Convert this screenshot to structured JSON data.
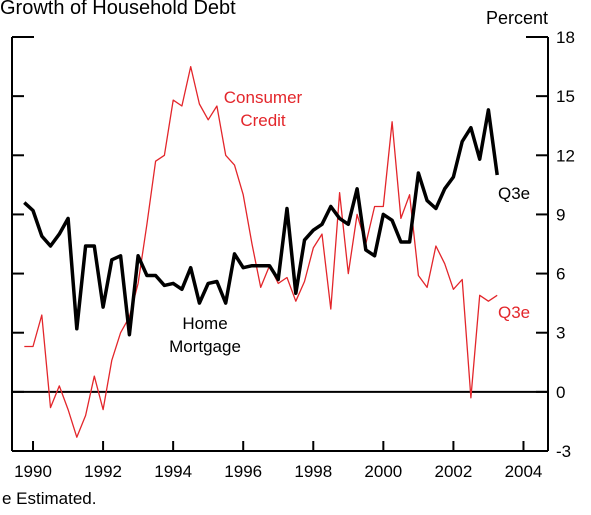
{
  "chart_data": {
    "type": "line",
    "title": "Growth of Household Debt",
    "y_axis_label": "Percent",
    "footnote": "e Estimated.",
    "annotations": [
      "Consumer",
      "Credit",
      "Home",
      "Mortgage",
      "Q3e",
      "Q3e"
    ],
    "x": [
      1989.75,
      1990,
      1990.25,
      1990.5,
      1990.75,
      1991,
      1991.25,
      1991.5,
      1991.75,
      1992,
      1992.25,
      1992.5,
      1992.75,
      1993,
      1993.25,
      1993.5,
      1993.75,
      1994,
      1994.25,
      1994.5,
      1994.75,
      1995,
      1995.25,
      1995.5,
      1995.75,
      1996,
      1996.25,
      1996.5,
      1996.75,
      1997,
      1997.25,
      1997.5,
      1997.75,
      1998,
      1998.25,
      1998.5,
      1998.75,
      1999,
      1999.25,
      1999.5,
      1999.75,
      2000,
      2000.25,
      2000.5,
      2000.75,
      2001,
      2001.25,
      2001.5,
      2001.75,
      2002,
      2002.25,
      2002.5,
      2002.75,
      2003,
      2003.25
    ],
    "series": [
      {
        "name": "Home Mortgage",
        "color": "#000000",
        "width": 3.5,
        "values": [
          9.6,
          9.2,
          7.9,
          7.4,
          8.0,
          8.8,
          3.2,
          7.4,
          7.4,
          4.3,
          6.7,
          6.9,
          2.9,
          6.9,
          5.9,
          5.9,
          5.4,
          5.5,
          5.2,
          6.3,
          4.5,
          5.5,
          5.6,
          4.5,
          7.0,
          6.3,
          6.4,
          6.4,
          6.4,
          5.7,
          9.3,
          5.0,
          7.7,
          8.2,
          8.5,
          9.4,
          8.8,
          8.5,
          10.3,
          7.2,
          6.9,
          9.0,
          8.7,
          7.6,
          7.6,
          11.1,
          9.7,
          9.3,
          10.3,
          10.9,
          12.7,
          13.4,
          11.8,
          14.3,
          11.0
        ]
      },
      {
        "name": "Consumer Credit",
        "color": "#e3262b",
        "width": 1.3,
        "values": [
          2.3,
          2.3,
          3.9,
          -0.8,
          0.3,
          -0.9,
          -2.3,
          -1.2,
          0.8,
          -0.9,
          1.6,
          3.0,
          3.8,
          5.5,
          8.5,
          11.7,
          12.0,
          14.8,
          14.5,
          16.5,
          14.6,
          13.8,
          14.5,
          12.0,
          11.5,
          10.0,
          7.5,
          5.3,
          6.4,
          5.5,
          5.8,
          4.6,
          5.6,
          7.3,
          8.0,
          4.2,
          10.1,
          6.0,
          9.0,
          7.5,
          9.4,
          9.4,
          13.7,
          8.8,
          10.0,
          5.9,
          5.3,
          7.4,
          6.5,
          5.2,
          5.7,
          -0.3,
          4.9,
          4.6,
          4.9
        ]
      }
    ],
    "xlim": [
      1989.4,
      2004.7
    ],
    "ylim": [
      -3,
      18
    ],
    "xticks": [
      1990,
      1992,
      1994,
      1996,
      1998,
      2000,
      2002,
      2004
    ],
    "yticks": [
      -3,
      0,
      3,
      6,
      9,
      12,
      15,
      18
    ],
    "zero_line": 0
  }
}
